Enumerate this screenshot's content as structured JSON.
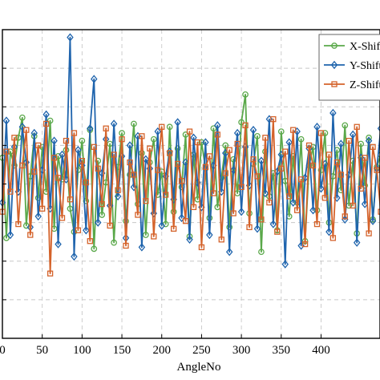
{
  "chart_data": {
    "type": "line",
    "xlabel": "AngleNo",
    "ylabel": "",
    "xlim": [
      0,
      474
    ],
    "ylim": [
      -1,
      1
    ],
    "x_ticks": [
      0,
      50,
      100,
      150,
      200,
      250,
      300,
      350,
      400
    ],
    "x_tick_labels": [
      "0",
      "50",
      "100",
      "150",
      "200",
      "250",
      "300",
      "350",
      "400"
    ],
    "y_ticks": [
      -1,
      -0.75,
      -0.5,
      -0.25,
      0,
      0.25,
      0.5,
      0.75,
      1
    ],
    "grid": true,
    "legend_position": "top-right",
    "series": [
      {
        "name": "X-Shift",
        "color": "#5aa84a",
        "marker": "circle",
        "values": [
          0.17,
          -0.35,
          0.21,
          0.12,
          0.3,
          0.43,
          -0.27,
          0.05,
          0.31,
          -0.09,
          0.24,
          -0.05,
          0.41,
          -0.29,
          0.18,
          0.03,
          0.22,
          -0.16,
          -0.31,
          0.09,
          0.28,
          -0.11,
          0.35,
          -0.42,
          0.15,
          -0.2,
          0.01,
          0.26,
          -0.38,
          0.11,
          0.33,
          -0.24,
          0.06,
          0.39,
          -0.13,
          0.2,
          -0.33,
          0.14,
          0.29,
          -0.07,
          0.08,
          -0.26,
          0.37,
          -0.18,
          0.23,
          -0.02,
          0.32,
          -0.34,
          0.19,
          -0.1,
          0.27,
          0.1,
          -0.22,
          0.36,
          -0.15,
          0.04,
          0.25,
          -0.28,
          0.16,
          -0.06,
          0.4,
          0.58,
          -0.19,
          0.13,
          0.31,
          -0.44,
          0.21,
          -0.08,
          0.07,
          -0.3,
          0.34,
          0.02,
          -0.21,
          0.18,
          -0.12,
          0.29,
          -0.37,
          0.12,
          0.24,
          -0.17,
          0.09,
          0.33,
          -0.25,
          0.05,
          0.22,
          -0.04,
          0.38,
          -0.14,
          0.15,
          -0.32,
          0.26,
          -0.01,
          0.3,
          -0.23,
          0.11,
          0.19,
          -0.39,
          0.35,
          -0.09,
          0.06
        ],
        "note": "values are sampled every 5 AngleNo, from 0 to 470"
      },
      {
        "name": "Y-Shift",
        "color": "#1f64ad",
        "marker": "diamond",
        "values": [
          -0.12,
          0.41,
          -0.33,
          0.24,
          -0.05,
          0.37,
          0.14,
          -0.28,
          0.33,
          -0.21,
          0.09,
          0.45,
          -0.16,
          0.28,
          -0.39,
          0.19,
          0.03,
          0.95,
          -0.47,
          0.22,
          0.12,
          -0.3,
          0.36,
          0.68,
          -0.25,
          0.07,
          0.29,
          -0.14,
          0.39,
          -0.08,
          0.18,
          -0.35,
          0.25,
          -0.02,
          0.31,
          -0.41,
          0.16,
          0.1,
          -0.19,
          0.34,
          -0.27,
          0.05,
          0.21,
          -0.1,
          0.4,
          -0.22,
          0.14,
          -0.36,
          0.3,
          0.01,
          -0.15,
          0.27,
          -0.33,
          0.12,
          0.38,
          -0.05,
          0.2,
          -0.44,
          0.09,
          0.33,
          -0.18,
          0.24,
          -0.01,
          0.35,
          -0.29,
          0.15,
          -0.06,
          0.42,
          -0.26,
          0.08,
          0.19,
          -0.52,
          0.27,
          -0.12,
          0.34,
          -0.4,
          0.04,
          0.23,
          -0.17,
          0.37,
          -0.03,
          0.13,
          -0.31,
          0.46,
          -0.09,
          0.26,
          -0.23,
          0.06,
          0.32,
          -0.38,
          0.17,
          -0.13,
          0.28,
          -0.24,
          0.1,
          0.36
        ],
        "note": "values are sampled every 5 AngleNo, from 0 to 470"
      },
      {
        "name": "Z-Shift",
        "color": "#d4622a",
        "marker": "square",
        "values": [
          -0.18,
          0.21,
          -0.05,
          0.3,
          -0.26,
          0.12,
          0.35,
          -0.33,
          0.08,
          0.25,
          -0.16,
          0.39,
          -0.58,
          0.17,
          0.04,
          -0.22,
          0.28,
          -0.1,
          0.33,
          -0.3,
          0.15,
          0.01,
          -0.37,
          0.24,
          0.1,
          -0.13,
          0.36,
          -0.27,
          0.19,
          -0.04,
          0.29,
          -0.4,
          0.14,
          0.06,
          -0.2,
          0.31,
          -0.11,
          0.23,
          -0.34,
          0.09,
          0.37,
          -0.07,
          0.2,
          -0.29,
          0.13,
          0.02,
          -0.24,
          0.34,
          -0.15,
          0.27,
          -0.41,
          0.11,
          0.18,
          -0.06,
          0.32,
          -0.36,
          0.07,
          0.22,
          -0.19,
          0.26,
          -0.02,
          0.38,
          -0.28,
          0.16,
          0.05,
          -0.23,
          0.3,
          -0.12,
          0.42,
          -0.31,
          0.1,
          0.21,
          -0.08,
          0.35,
          -0.17,
          0.03,
          -0.39,
          0.25,
          0.12,
          -0.26,
          0.33,
          -0.09,
          0.19,
          -0.35,
          0.14,
          0.06,
          -0.21,
          0.28,
          -0.14,
          0.37,
          -0.03,
          0.17,
          -0.32,
          0.24,
          0.09,
          -0.18
        ],
        "note": "values are sampled every 5 AngleNo, from 0 to 470"
      }
    ]
  }
}
